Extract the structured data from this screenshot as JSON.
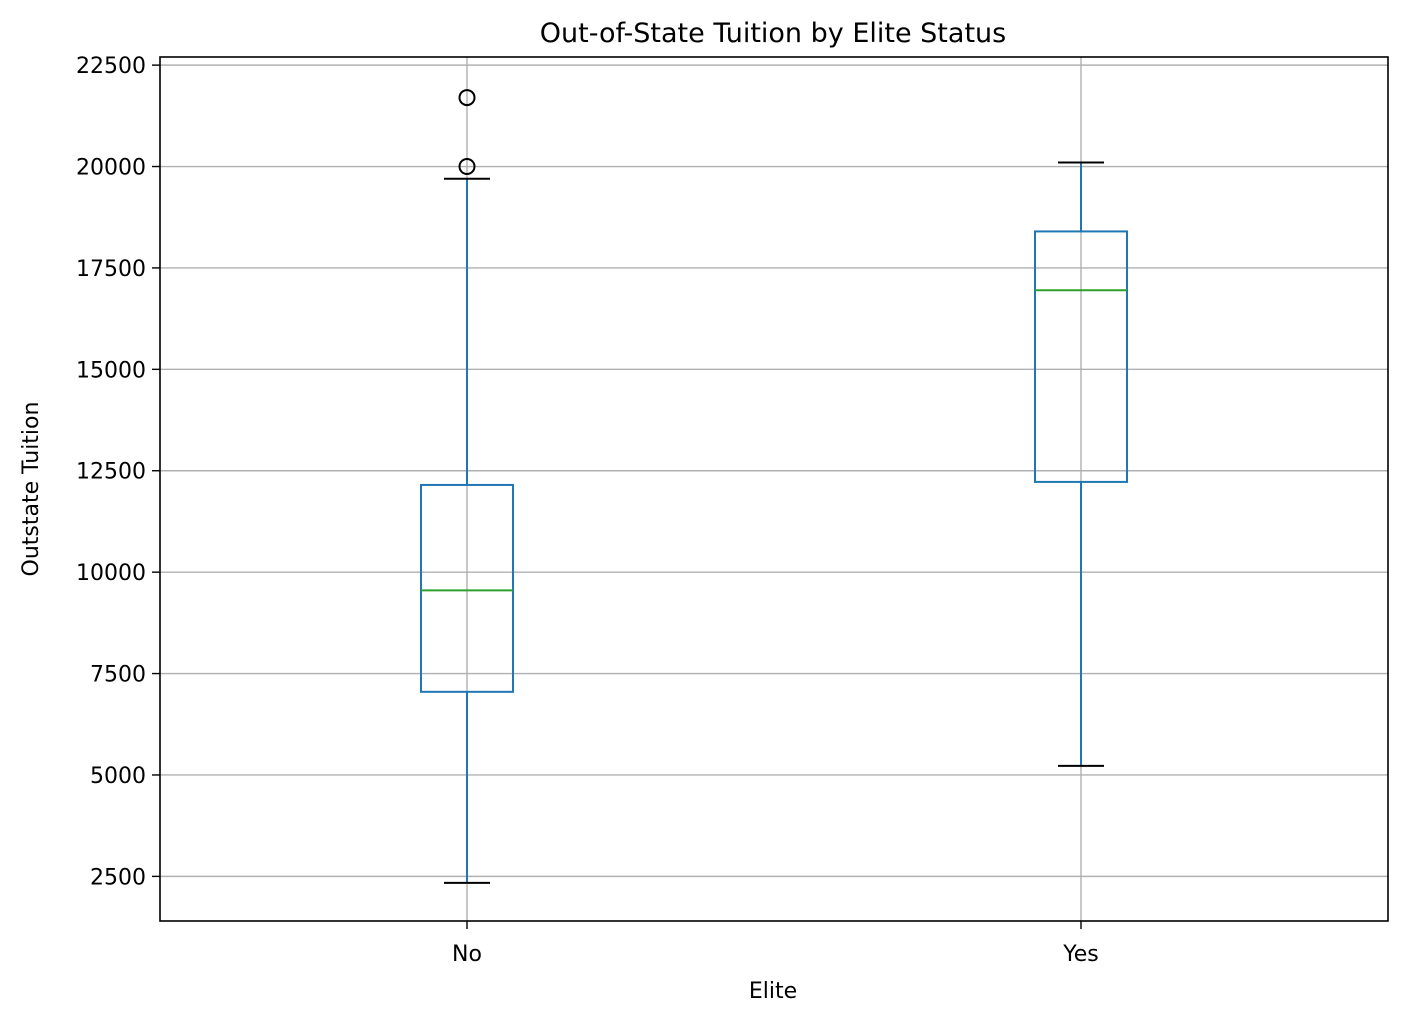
{
  "chart_data": {
    "type": "box",
    "title": "Out-of-State Tuition by Elite Status",
    "xlabel": "Elite",
    "ylabel": "Outstate Tuition",
    "categories": [
      "No",
      "Yes"
    ],
    "ylim": [
      1400,
      22700
    ],
    "yticks": [
      2500,
      5000,
      7500,
      10000,
      12500,
      15000,
      17500,
      20000,
      22500
    ],
    "grid": true,
    "boxes": [
      {
        "name": "No",
        "whisker_low": 2340,
        "q1": 7050,
        "median": 9550,
        "q3": 12150,
        "whisker_high": 19700,
        "fliers": [
          20000,
          21700
        ]
      },
      {
        "name": "Yes",
        "whisker_low": 5225,
        "q1": 12225,
        "median": 16950,
        "q3": 18400,
        "whisker_high": 20100,
        "fliers": []
      }
    ],
    "colors": {
      "box": "#1f77b4",
      "median": "#2ca02c",
      "whisker_cap": "#000000",
      "grid": "#b0b0b0"
    }
  }
}
